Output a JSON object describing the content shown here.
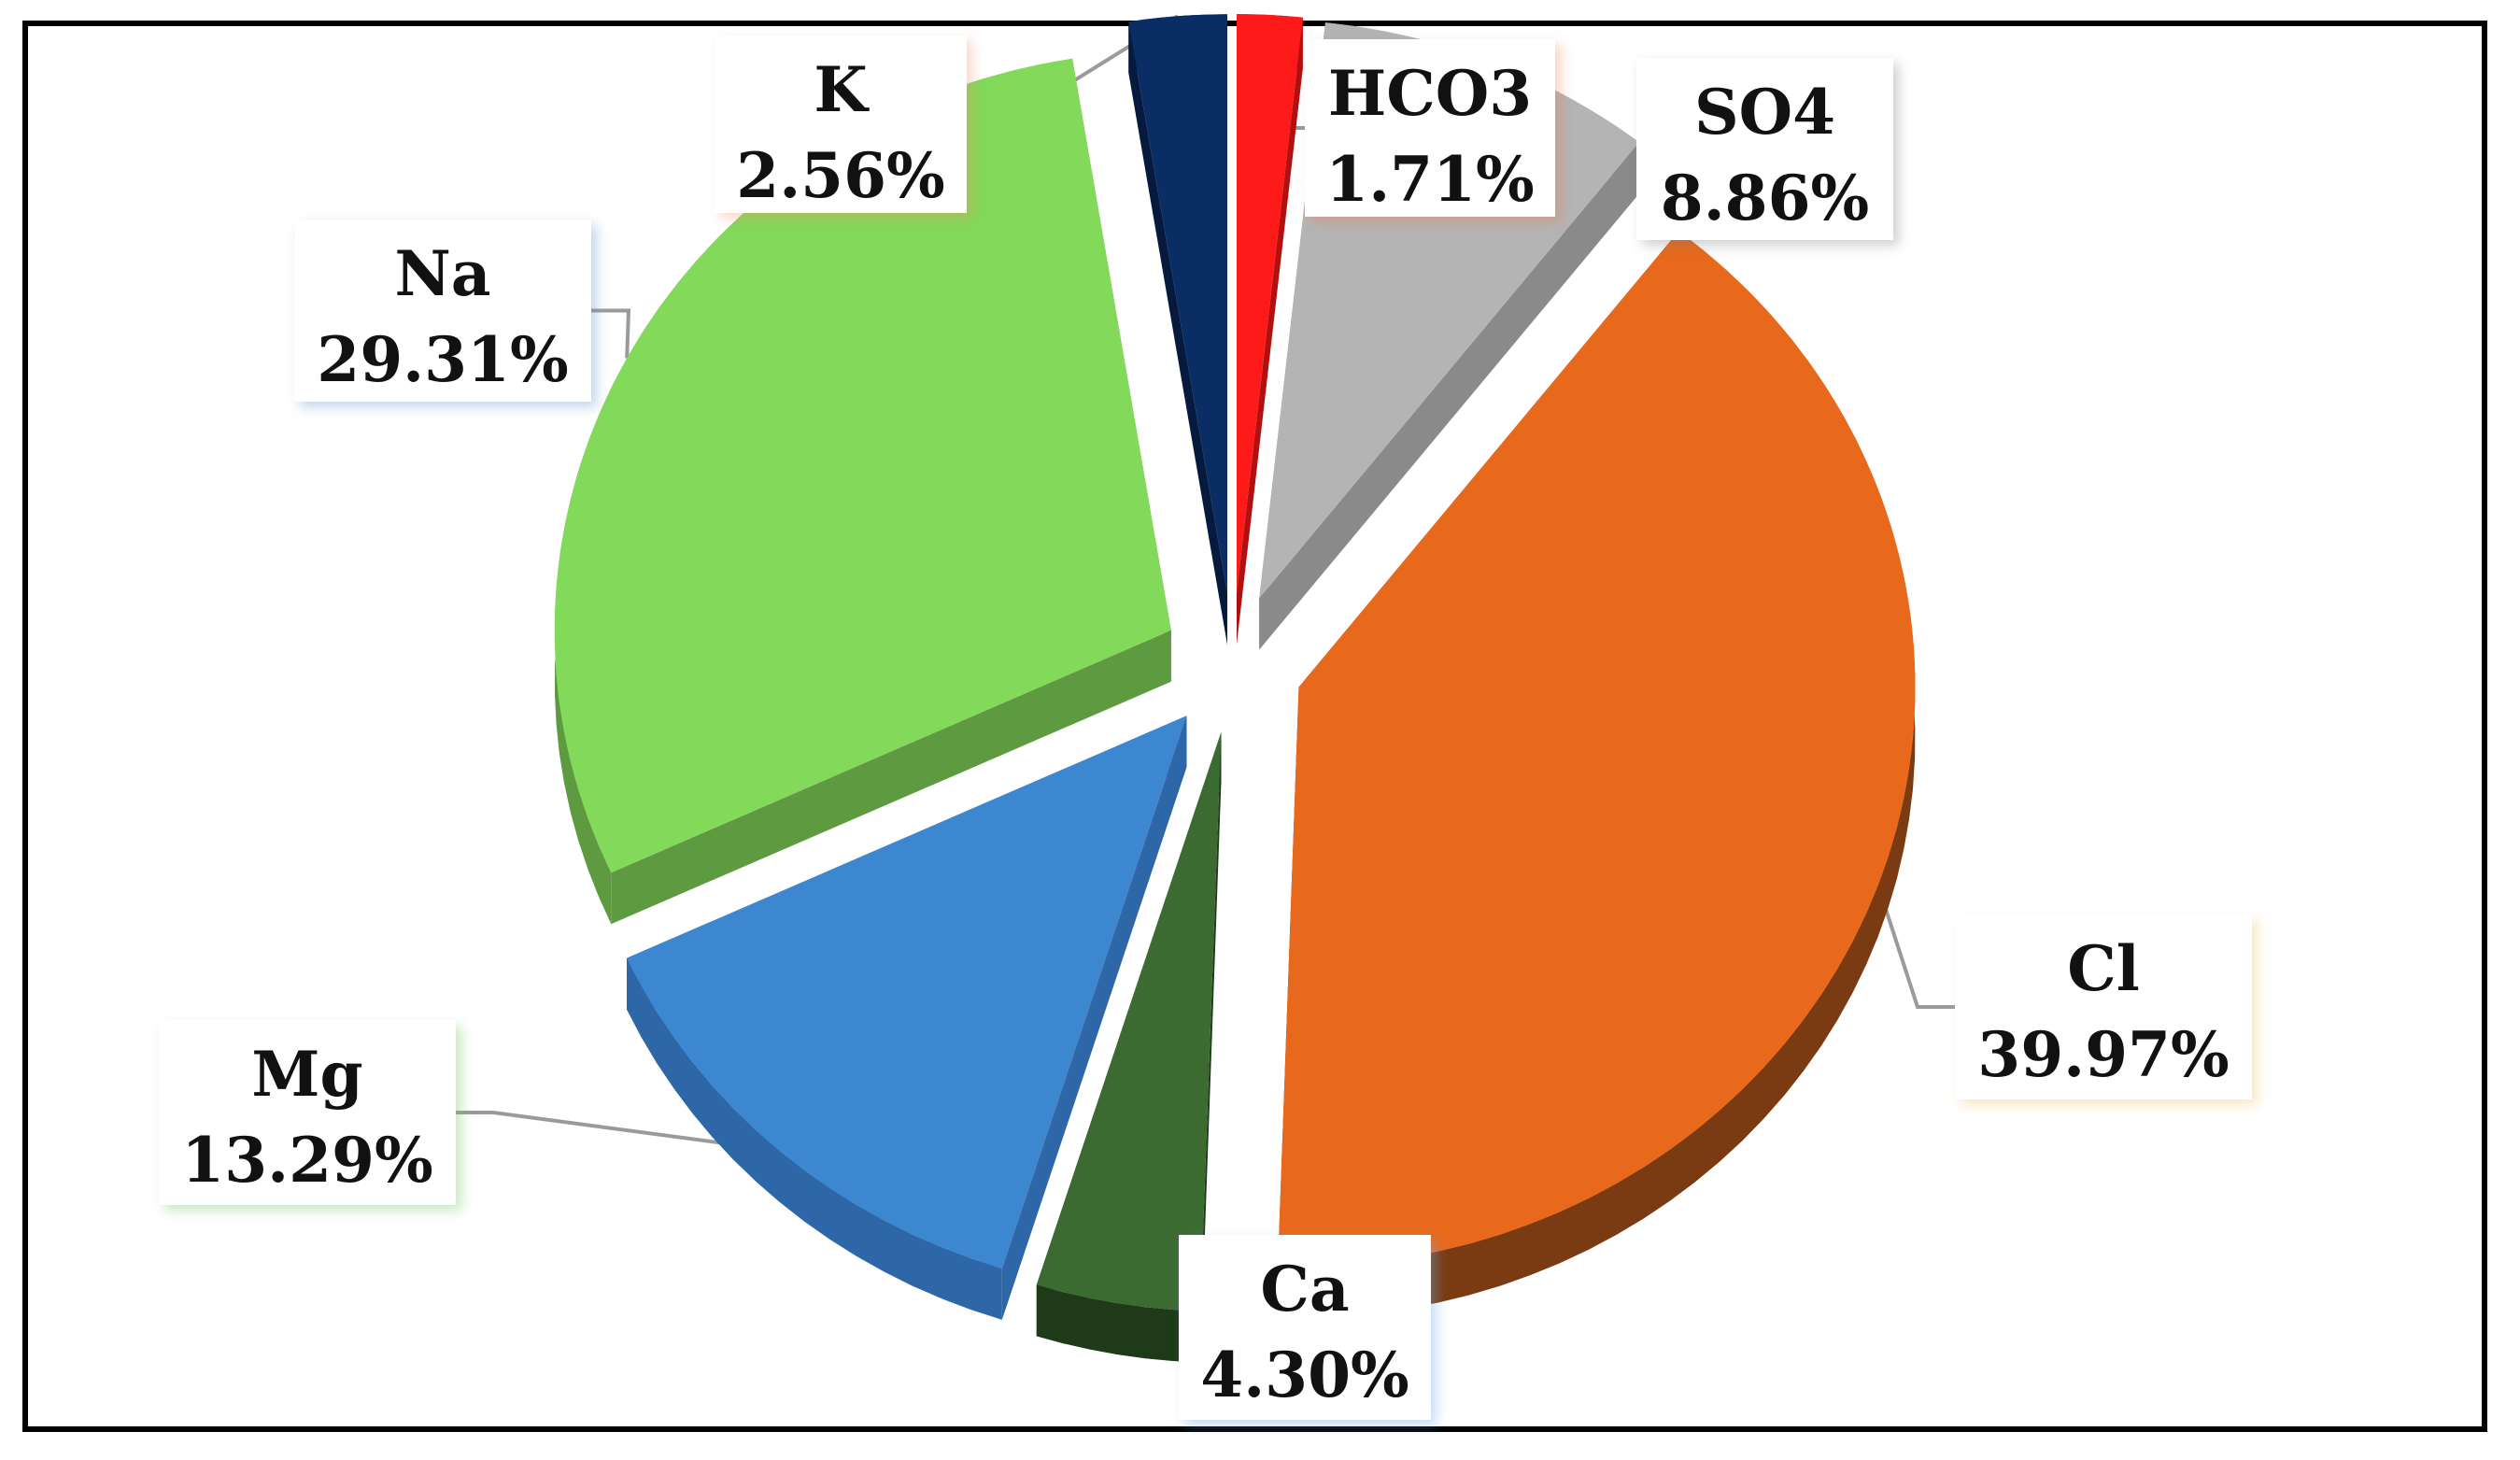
{
  "chart_data": {
    "type": "pie",
    "title": "",
    "slices": [
      {
        "label": "HCO3",
        "value": 1.71,
        "display": "1.71%",
        "color": "#FF1A1A",
        "side": "#B01010"
      },
      {
        "label": "SO4",
        "value": 8.86,
        "display": "8.86%",
        "color": "#B4B4B4",
        "side": "#8A8A8A"
      },
      {
        "label": "Cl",
        "value": 39.97,
        "display": "39.97%",
        "color": "#E8691C",
        "side": "#7A3A12"
      },
      {
        "label": "Ca",
        "value": 4.3,
        "display": "4.30%",
        "color": "#3C6B32",
        "side": "#1E3A18"
      },
      {
        "label": "Mg",
        "value": 13.29,
        "display": "13.29%",
        "color": "#3D86D0",
        "side": "#2D67A8"
      },
      {
        "label": "Na",
        "value": 29.31,
        "display": "29.31%",
        "color": "#82D95A",
        "side": "#5E9A40"
      },
      {
        "label": "K",
        "value": 2.56,
        "display": "2.56%",
        "color": "#0B2D66",
        "side": "#061A3D"
      }
    ],
    "legend": "none",
    "data_labels": "category-and-percent-callouts",
    "style": "3d-exploded"
  }
}
